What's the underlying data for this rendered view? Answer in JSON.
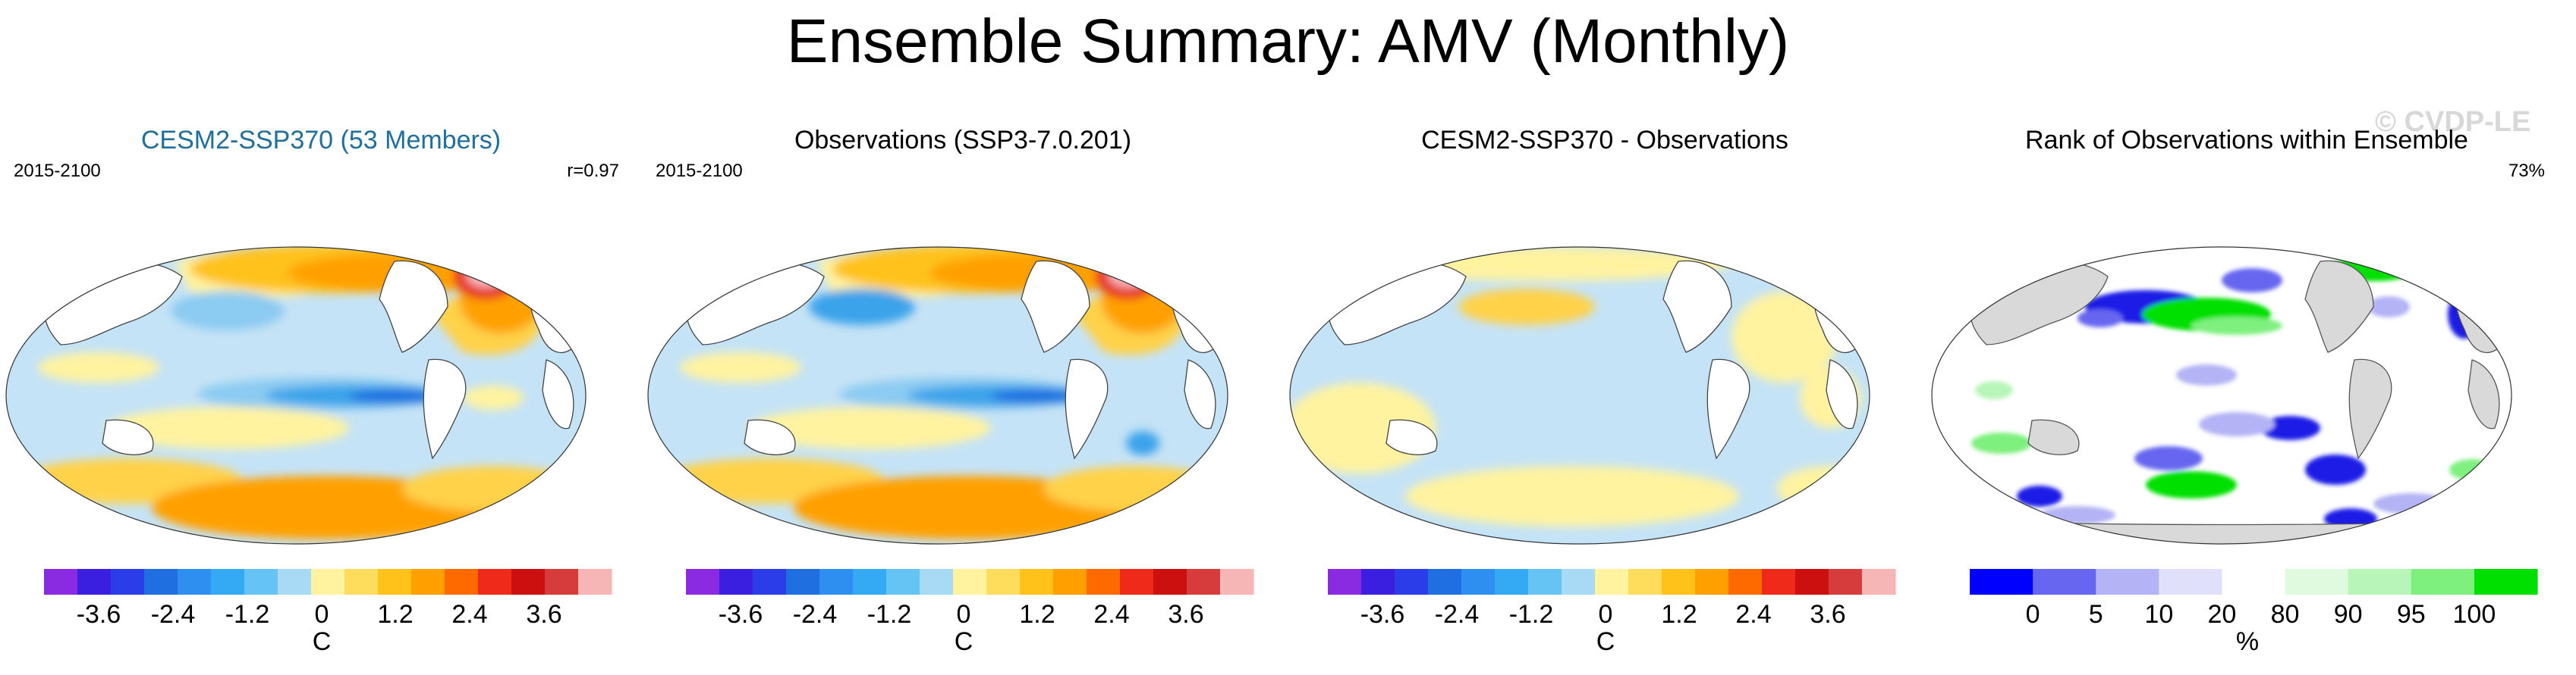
{
  "title": "Ensemble Summary: AMV (Monthly)",
  "watermark": "© CVDP-LE",
  "colors": {
    "ocean_light_blue": "#c5e3f6",
    "ocean_mid_blue": "#8ccbf2",
    "ocean_blue": "#3aa3ea",
    "ocean_yellow": "#fff3a0",
    "ocean_gold": "#ffd24a",
    "ocean_orange": "#ffa000",
    "ocean_red": "#e5241c",
    "ocean_pink": "#f7b6b6",
    "land_white": "#ffffff",
    "land_gray": "#d9d9d9",
    "rank_green": "#00e000",
    "rank_blue": "#1f1fe6"
  },
  "panels": [
    {
      "title": "CESM2-SSP370 (53 Members)",
      "left_label": "2015-2100",
      "right_label": "r=0.97",
      "colorbar_unit": "C",
      "colorbar_ticks": [
        "-3.6",
        "-2.4",
        "-1.2",
        "0",
        "1.2",
        "2.4",
        "3.6"
      ]
    },
    {
      "title": "Observations (SSP3-7.0.201)",
      "left_label": "2015-2100",
      "right_label": "",
      "colorbar_unit": "C",
      "colorbar_ticks": [
        "-3.6",
        "-2.4",
        "-1.2",
        "0",
        "1.2",
        "2.4",
        "3.6"
      ]
    },
    {
      "title": "CESM2-SSP370 - Observations",
      "left_label": "",
      "right_label": "",
      "colorbar_unit": "C",
      "colorbar_ticks": [
        "-3.6",
        "-2.4",
        "-1.2",
        "0",
        "1.2",
        "2.4",
        "3.6"
      ]
    },
    {
      "title": "Rank of Observations within Ensemble",
      "left_label": "",
      "right_label": "73%",
      "colorbar_unit": "%",
      "colorbar_ticks": [
        "0",
        "5",
        "10",
        "20",
        "80",
        "90",
        "95",
        "100"
      ]
    }
  ],
  "chart_data": [
    {
      "type": "heatmap",
      "title": "CESM2-SSP370 (53 Members)",
      "period": "2015-2100",
      "pattern_correlation": 0.97,
      "units": "C",
      "colorbar": {
        "levels": [
          -4.2,
          -3.6,
          -3.0,
          -2.4,
          -1.8,
          -1.2,
          -0.6,
          0,
          0.6,
          1.2,
          1.8,
          2.4,
          3.0,
          3.6,
          4.2
        ],
        "colors": [
          "#8a2be2",
          "#3b1fe0",
          "#2b3de8",
          "#1f6fe0",
          "#2f8ff0",
          "#34aaf5",
          "#66c4f5",
          "#a9daf5",
          "#fff3a0",
          "#ffdd5c",
          "#ffc21a",
          "#ffa000",
          "#ff6a00",
          "#ef2a1a",
          "#cc0f0f",
          "#d63c3c",
          "#f7b6b6"
        ]
      },
      "features": [
        {
          "region": "North Atlantic",
          "sign": "positive",
          "magnitude": "up to >4.2"
        },
        {
          "region": "Eastern Tropical Pacific",
          "sign": "negative",
          "magnitude": "about -1.8"
        },
        {
          "region": "Southern Ocean",
          "sign": "positive",
          "magnitude": "about 1.8"
        }
      ]
    },
    {
      "type": "heatmap",
      "title": "Observations (SSP3-7.0.201)",
      "period": "2015-2100",
      "units": "C",
      "colorbar": {
        "levels": [
          -4.2,
          -3.6,
          -3.0,
          -2.4,
          -1.8,
          -1.2,
          -0.6,
          0,
          0.6,
          1.2,
          1.8,
          2.4,
          3.0,
          3.6,
          4.2
        ],
        "colors": [
          "#8a2be2",
          "#3b1fe0",
          "#2b3de8",
          "#1f6fe0",
          "#2f8ff0",
          "#34aaf5",
          "#66c4f5",
          "#a9daf5",
          "#fff3a0",
          "#ffdd5c",
          "#ffc21a",
          "#ffa000",
          "#ff6a00",
          "#ef2a1a",
          "#cc0f0f",
          "#d63c3c",
          "#f7b6b6"
        ]
      },
      "features": [
        {
          "region": "North Atlantic",
          "sign": "positive",
          "magnitude": "up to >4.2"
        },
        {
          "region": "Eastern Tropical Pacific",
          "sign": "negative",
          "magnitude": "about -1.8"
        },
        {
          "region": "Southern Ocean",
          "sign": "positive",
          "magnitude": "about 1.8"
        }
      ]
    },
    {
      "type": "heatmap",
      "title": "CESM2-SSP370 - Observations",
      "units": "C",
      "colorbar": {
        "levels": [
          -4.2,
          -3.6,
          -3.0,
          -2.4,
          -1.8,
          -1.2,
          -0.6,
          0,
          0.6,
          1.2,
          1.8,
          2.4,
          3.0,
          3.6,
          4.2
        ],
        "colors": [
          "#8a2be2",
          "#3b1fe0",
          "#2b3de8",
          "#1f6fe0",
          "#2f8ff0",
          "#34aaf5",
          "#66c4f5",
          "#a9daf5",
          "#fff3a0",
          "#ffdd5c",
          "#ffc21a",
          "#ffa000",
          "#ff6a00",
          "#ef2a1a",
          "#cc0f0f",
          "#d63c3c",
          "#f7b6b6"
        ]
      },
      "features": [
        {
          "region": "Global",
          "sign": "mixed",
          "magnitude": "within ±0.6"
        }
      ]
    },
    {
      "type": "heatmap",
      "title": "Rank of Observations within Ensemble",
      "summary_value": "73%",
      "units": "%",
      "colorbar": {
        "levels": [
          0,
          5,
          10,
          20,
          80,
          90,
          95,
          100
        ],
        "colors": [
          "#0000ff",
          "#6666f0",
          "#b3b3f5",
          "#e0e0fa",
          "#ffffff",
          "#e0fae0",
          "#b8f5b8",
          "#7ef07e",
          "#00e000"
        ]
      },
      "features": [
        {
          "region": "North Pacific",
          "rank": "above 95"
        },
        {
          "region": "Kuroshio",
          "rank": "below 5"
        }
      ]
    }
  ]
}
